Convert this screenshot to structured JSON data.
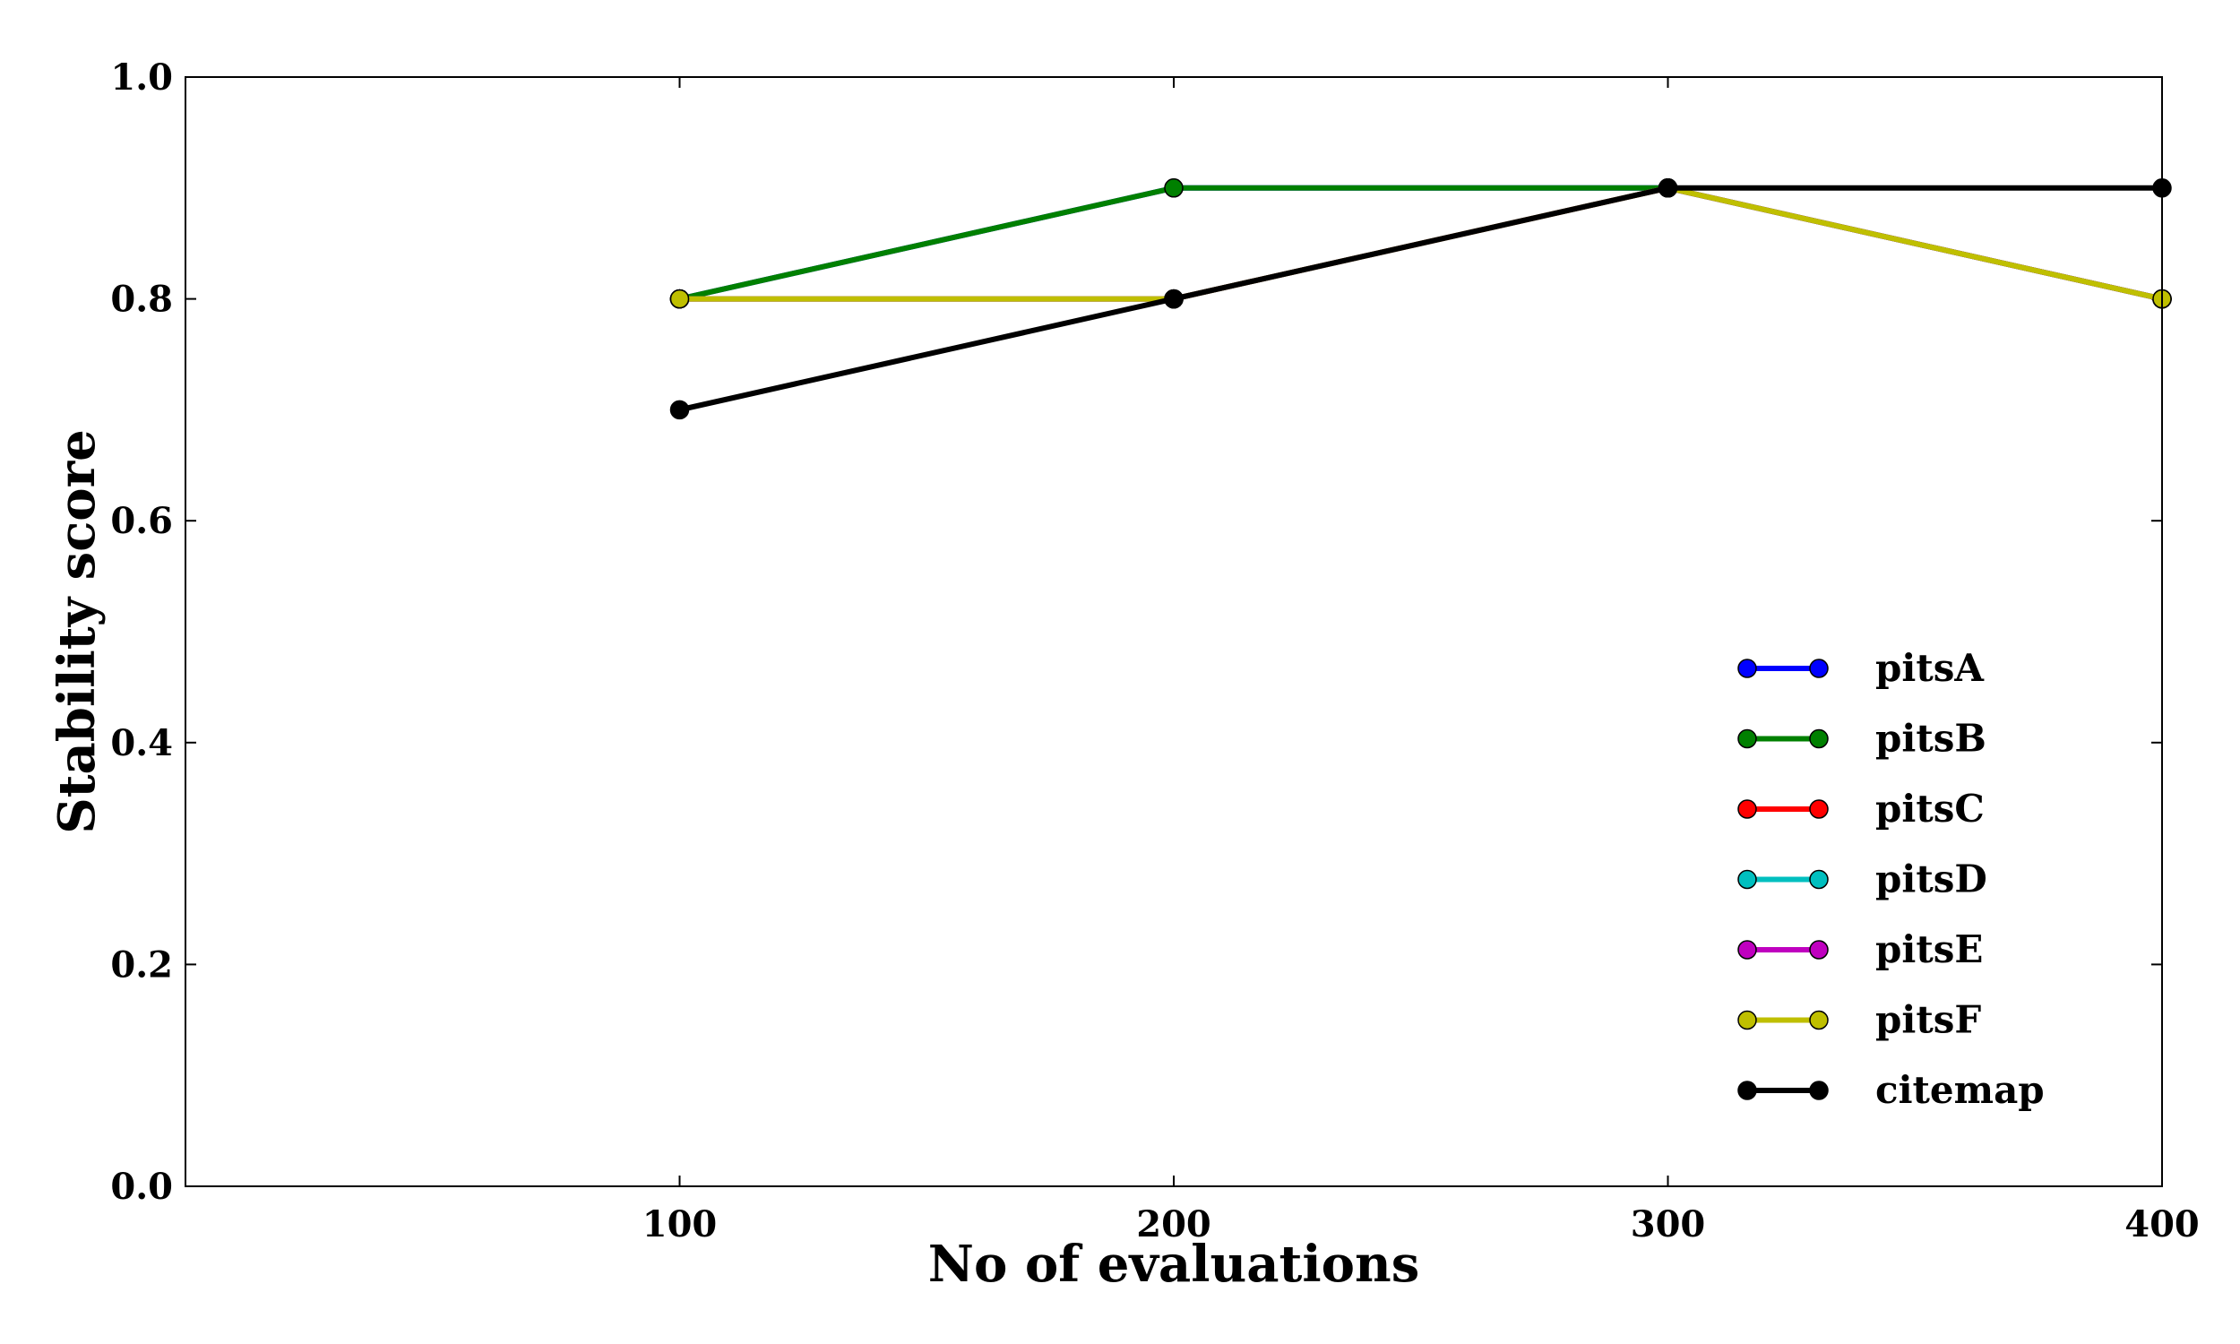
{
  "chart_data": {
    "type": "line",
    "title": "",
    "xlabel": "No of evaluations",
    "ylabel": "Stability score",
    "xlim": [
      0,
      400
    ],
    "ylim": [
      0.0,
      1.0
    ],
    "x_ticks": [
      100,
      200,
      300,
      400
    ],
    "x_tick_labels": [
      "100",
      "200",
      "300",
      "400"
    ],
    "y_ticks": [
      0.0,
      0.2,
      0.4,
      0.6,
      0.8,
      1.0
    ],
    "y_tick_labels": [
      "0.0",
      "0.2",
      "0.4",
      "0.6",
      "0.8",
      "1.0"
    ],
    "grid": false,
    "legend_position": "lower-right",
    "x": [
      100,
      200,
      300,
      400
    ],
    "series": [
      {
        "name": "pitsA",
        "color": "#0000ff",
        "values": [
          0.8,
          0.9,
          0.9,
          0.8
        ]
      },
      {
        "name": "pitsB",
        "color": "#008000",
        "values": [
          0.8,
          0.9,
          0.9,
          0.8
        ]
      },
      {
        "name": "pitsC",
        "color": "#ff0000",
        "values": [
          0.8,
          0.8,
          0.9,
          0.8
        ]
      },
      {
        "name": "pitsD",
        "color": "#00bfbf",
        "values": [
          0.8,
          0.8,
          0.9,
          0.8
        ]
      },
      {
        "name": "pitsE",
        "color": "#bf00bf",
        "values": [
          0.8,
          0.8,
          0.9,
          0.8
        ]
      },
      {
        "name": "pitsF",
        "color": "#bfbf00",
        "values": [
          0.8,
          0.8,
          0.9,
          0.8
        ]
      },
      {
        "name": "citemap",
        "color": "#000000",
        "values": [
          0.7,
          0.8,
          0.9,
          0.9
        ]
      }
    ]
  }
}
